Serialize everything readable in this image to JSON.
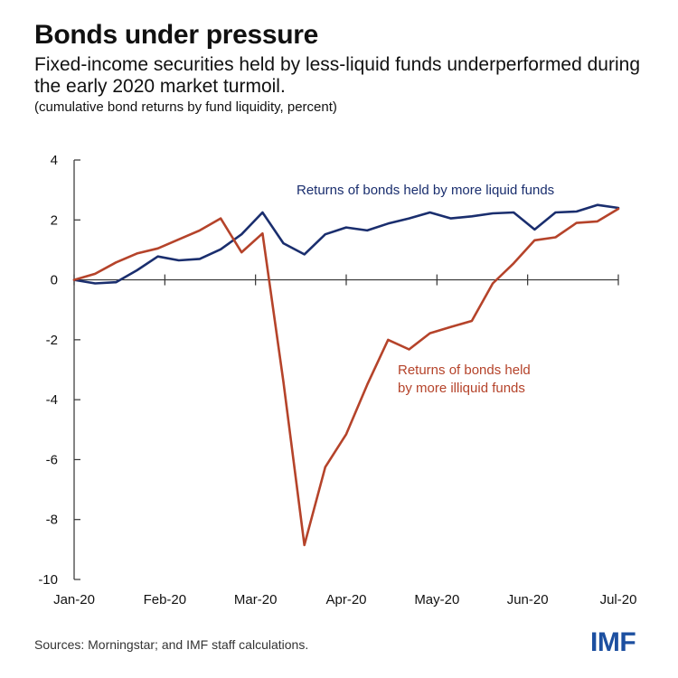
{
  "title": "Bonds under pressure",
  "subtitle": "Fixed-income securities held by less-liquid funds underperformed during the early 2020 market turmoil.",
  "note": "(cumulative bond returns by fund liquidity, percent)",
  "source": "Sources: Morningstar; and IMF staff calculations.",
  "logo": "IMF",
  "chart_data": {
    "type": "line",
    "x_labels": [
      "Jan-20",
      "Feb-20",
      "Mar-20",
      "Apr-20",
      "May-20",
      "Jun-20",
      "Jul-20"
    ],
    "ylim": [
      -10,
      4
    ],
    "y_ticks": [
      "4",
      "2",
      "0",
      "-2",
      "-4",
      "-6",
      "-8",
      "-10"
    ],
    "series": [
      {
        "name": "Returns of bonds held by more liquid funds",
        "color": "#1a2e6e",
        "values": [
          0.0,
          -0.12,
          -0.08,
          0.32,
          0.78,
          0.65,
          0.7,
          1.02,
          1.52,
          2.25,
          1.22,
          0.85,
          1.52,
          1.75,
          1.65,
          1.88,
          2.05,
          2.25,
          2.05,
          2.12,
          2.22,
          2.25,
          1.68,
          2.25,
          2.28,
          2.5,
          2.4
        ]
      },
      {
        "name": "Returns of bonds held by more illiquid funds",
        "color": "#b5432a",
        "values": [
          0.0,
          0.2,
          0.58,
          0.88,
          1.05,
          1.35,
          1.65,
          2.05,
          0.92,
          1.55,
          -3.4,
          -8.85,
          -6.25,
          -5.15,
          -3.5,
          -2.0,
          -2.32,
          -1.78,
          -1.57,
          -1.37,
          -0.12,
          0.55,
          1.32,
          1.42,
          1.9,
          1.95,
          2.37
        ]
      }
    ]
  }
}
